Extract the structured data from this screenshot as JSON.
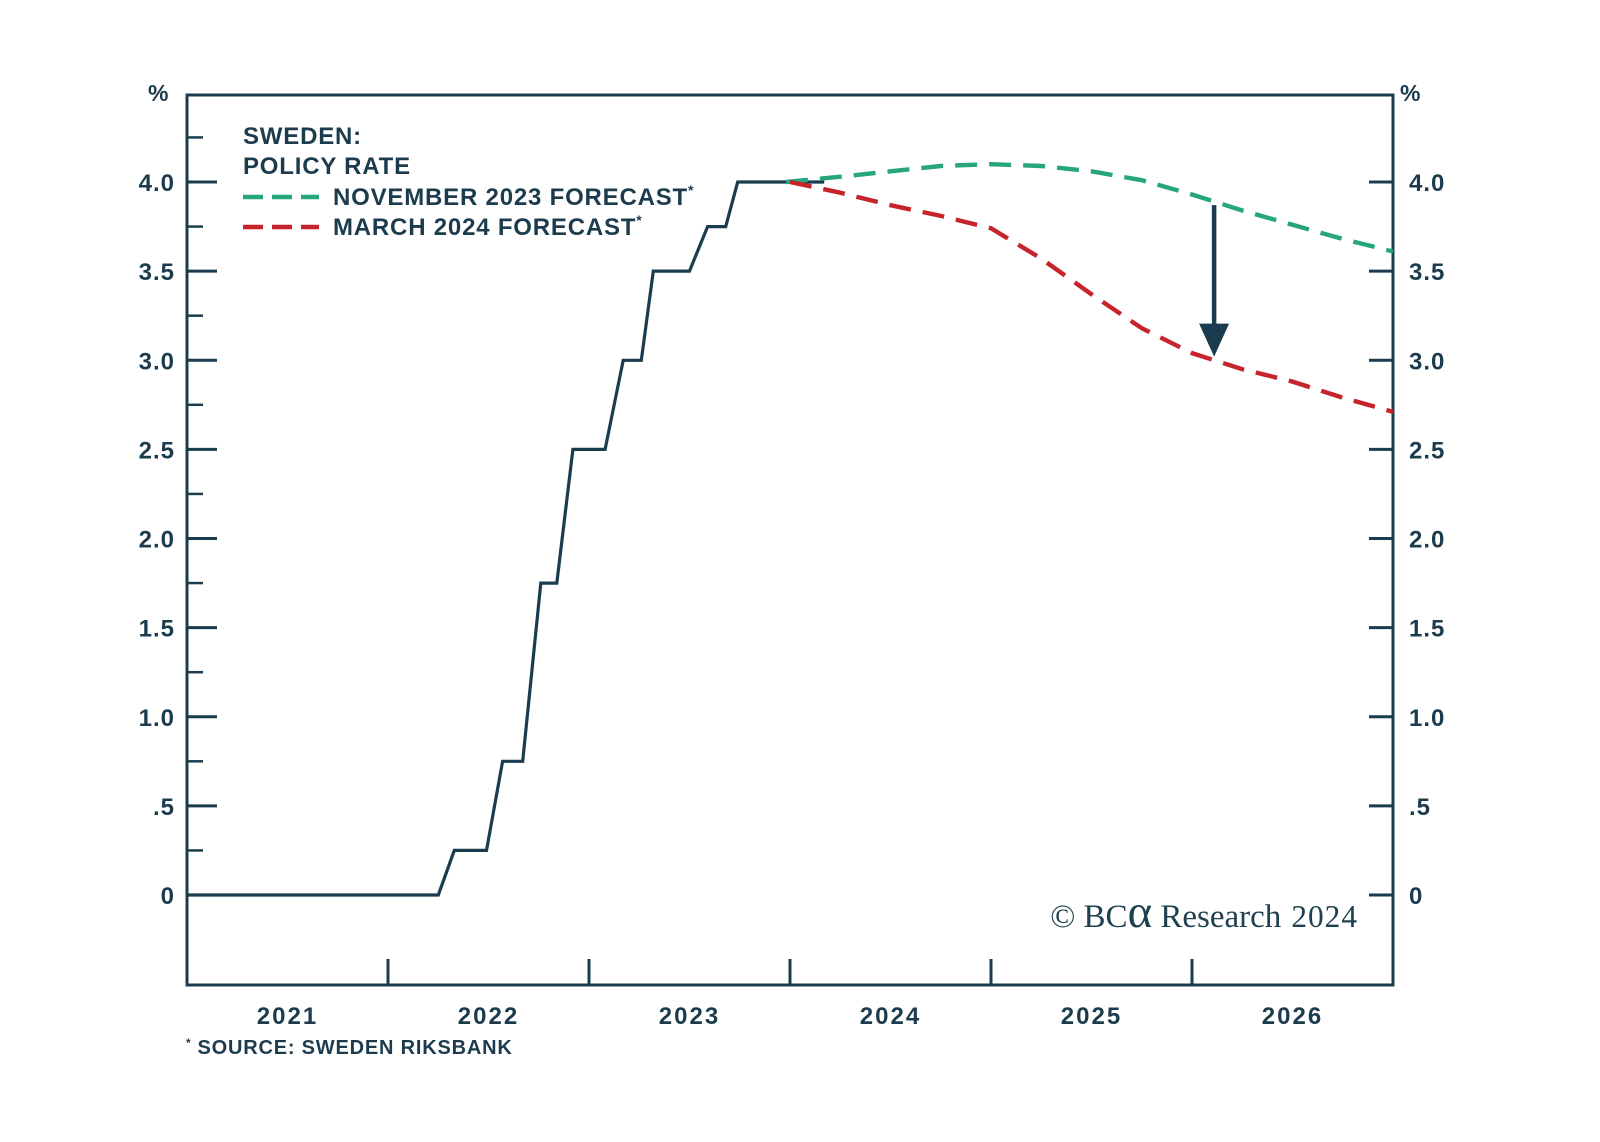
{
  "figure": {
    "background": "#ffffff",
    "axis_color": "#1B3C4E",
    "text_color": "#1C3C4E"
  },
  "legend": {
    "title_line1": "SWEDEN:",
    "title_line2": "POLICY RATE",
    "entries": [
      {
        "label": "NOVEMBER 2023 FORECAST",
        "asterisk": "*",
        "color": "#27A57C"
      },
      {
        "label": "MARCH 2024 FORECAST",
        "asterisk": "*",
        "color": "#C6232B"
      }
    ]
  },
  "axes": {
    "percent_symbol": "%",
    "y_ticks": [
      {
        "value": 4.0,
        "label": "4.0"
      },
      {
        "value": 3.5,
        "label": "3.5"
      },
      {
        "value": 3.0,
        "label": "3.0"
      },
      {
        "value": 2.5,
        "label": "2.5"
      },
      {
        "value": 2.0,
        "label": "2.0"
      },
      {
        "value": 1.5,
        "label": "1.5"
      },
      {
        "value": 1.0,
        "label": "1.0"
      },
      {
        "value": 0.5,
        "label": ".5"
      },
      {
        "value": 0.0,
        "label": "0"
      }
    ],
    "y_minor_ticks": [
      0.25,
      0.75,
      1.25,
      1.75,
      2.25,
      2.75,
      3.25,
      3.75,
      4.25
    ],
    "x_ticks": [
      2022,
      2023,
      2024,
      2025,
      2026
    ],
    "x_labels": [
      {
        "text": "2021",
        "x": 2021.5
      },
      {
        "text": "2022",
        "x": 2022.5
      },
      {
        "text": "2023",
        "x": 2023.5
      },
      {
        "text": "2024",
        "x": 2024.5
      },
      {
        "text": "2025",
        "x": 2025.5
      },
      {
        "text": "2026",
        "x": 2026.5
      }
    ]
  },
  "chart_data": {
    "type": "line",
    "title": "SWEDEN: POLICY RATE",
    "ylabel": "%",
    "xlim": [
      2021,
      2027
    ],
    "ylim": [
      -0.5,
      4.5
    ],
    "grid": false,
    "legend_position": "top-left",
    "source": "SWEDEN RIKSBANK",
    "series": [
      {
        "name": "POLICY RATE",
        "style": "solid",
        "color": "#1B3C4E",
        "x": [
          2021.0,
          2022.25,
          2022.33,
          2022.49,
          2022.57,
          2022.67,
          2022.76,
          2022.84,
          2022.92,
          2023.08,
          2023.17,
          2023.26,
          2023.32,
          2023.5,
          2023.59,
          2023.68,
          2023.74,
          2024.17
        ],
        "y": [
          0,
          0,
          0.25,
          0.25,
          0.75,
          0.75,
          1.75,
          1.75,
          2.5,
          2.5,
          3.0,
          3.0,
          3.5,
          3.5,
          3.75,
          3.75,
          4.0,
          4.0
        ]
      },
      {
        "name": "NOVEMBER 2023 FORECAST*",
        "style": "dashed",
        "color": "#27A57C",
        "x": [
          2023.98,
          2024.25,
          2024.5,
          2024.75,
          2025.0,
          2025.25,
          2025.5,
          2025.75,
          2026.0,
          2026.25,
          2026.5,
          2026.75,
          2027.0
        ],
        "y": [
          4.0,
          4.03,
          4.06,
          4.09,
          4.1,
          4.09,
          4.06,
          4.01,
          3.93,
          3.84,
          3.76,
          3.68,
          3.61
        ]
      },
      {
        "name": "MARCH 2024 FORECAST*",
        "style": "dashed",
        "color": "#C6232B",
        "x": [
          2024.0,
          2024.25,
          2024.5,
          2024.75,
          2025.0,
          2025.25,
          2025.5,
          2025.75,
          2026.0,
          2026.25,
          2026.5,
          2026.75,
          2027.0
        ],
        "y": [
          4.0,
          3.94,
          3.87,
          3.81,
          3.74,
          3.57,
          3.37,
          3.18,
          3.04,
          2.95,
          2.88,
          2.79,
          2.71
        ]
      }
    ],
    "annotations": [
      {
        "type": "arrow",
        "direction": "down",
        "x": 2026.11,
        "y_from": 3.87,
        "y_to": 3.02
      }
    ]
  },
  "source_note": {
    "asterisk": "*",
    "text": "SOURCE: SWEDEN RIKSBANK"
  },
  "watermark": {
    "prefix": "© BC",
    "alpha": "α",
    "suffix": " Research",
    "year": "2024"
  }
}
